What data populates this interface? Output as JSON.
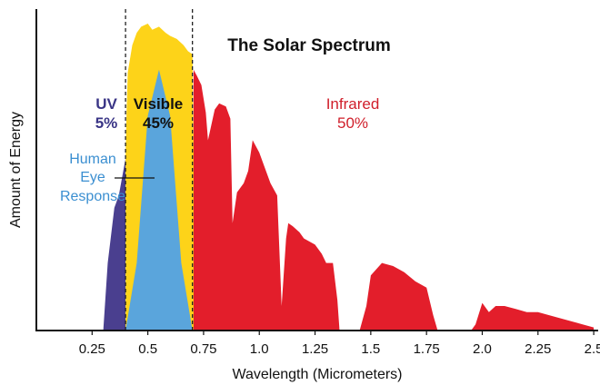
{
  "chart_data": {
    "type": "area",
    "title": "The Solar Spectrum",
    "xlabel": "Wavelength (Micrometers)",
    "ylabel": "Amount of Energy",
    "xlim": [
      0.0,
      2.52
    ],
    "ylim": [
      0,
      100
    ],
    "x_ticks": [
      "0.25",
      "0.5",
      "0.75",
      "1.0",
      "1.25",
      "1.5",
      "1.75",
      "2.0",
      "2.25",
      "2.5"
    ],
    "x_tick_values": [
      0.25,
      0.5,
      0.75,
      1.0,
      1.25,
      1.5,
      1.75,
      2.0,
      2.25,
      2.5
    ],
    "boundaries": [
      0.4,
      0.7
    ],
    "grid": false,
    "regions": [
      {
        "name": "UV",
        "percent": "5%",
        "color": "#4a3f8f",
        "range": [
          0.3,
          0.4
        ]
      },
      {
        "name": "Visible",
        "percent": "45%",
        "color": "#fdd319",
        "range": [
          0.4,
          0.72
        ]
      },
      {
        "name": "Infrared",
        "percent": "50%",
        "color": "#e31e2b",
        "range": [
          0.72,
          2.5
        ]
      }
    ],
    "annotation": {
      "lines": [
        "Human",
        "Eye",
        "Response"
      ],
      "color": "#3b8fd1"
    },
    "series": [
      {
        "region": "UV",
        "color": "#4a3f8f",
        "x": [
          0.3,
          0.32,
          0.35,
          0.37,
          0.39,
          0.4
        ],
        "y": [
          0,
          22,
          40,
          44,
          52,
          56
        ]
      },
      {
        "region": "Visible",
        "color": "#fdd319",
        "x": [
          0.4,
          0.405,
          0.41,
          0.43,
          0.45,
          0.47,
          0.5,
          0.52,
          0.55,
          0.58,
          0.6,
          0.63,
          0.66,
          0.68,
          0.7,
          0.705,
          0.71,
          0.72
        ],
        "y": [
          56,
          72,
          84,
          93,
          97,
          99,
          100,
          98,
          99,
          97,
          96,
          95,
          93,
          91,
          90,
          62,
          30,
          0
        ]
      },
      {
        "region": "Infrared",
        "color": "#e31e2b",
        "x": [
          0.705,
          0.72,
          0.74,
          0.76,
          0.77,
          0.8,
          0.82,
          0.85,
          0.87,
          0.88,
          0.9,
          0.93,
          0.95,
          0.97,
          1.0,
          1.02,
          1.05,
          1.08,
          1.1,
          1.12,
          1.13,
          1.15,
          1.18,
          1.2,
          1.25,
          1.28,
          1.3,
          1.33,
          1.35,
          1.36,
          1.4,
          1.45,
          1.48,
          1.5,
          1.55,
          1.6,
          1.65,
          1.7,
          1.75,
          1.78,
          1.8,
          1.82,
          1.9,
          1.95,
          1.97,
          2.0,
          2.03,
          2.06,
          2.1,
          2.15,
          2.2,
          2.25,
          2.3,
          2.35,
          2.4,
          2.45,
          2.5
        ],
        "y": [
          85,
          83,
          80,
          71,
          62,
          72,
          74,
          73,
          69,
          35,
          45,
          48,
          52,
          62,
          58,
          54,
          48,
          44,
          8,
          30,
          35,
          34,
          32,
          30,
          28,
          25,
          22,
          22,
          10,
          0,
          0,
          0,
          8,
          18,
          22,
          21,
          19,
          16,
          14,
          5,
          0,
          0,
          0,
          0,
          2,
          9,
          6,
          8,
          8,
          7,
          6,
          6,
          5,
          4,
          3,
          2,
          1
        ]
      },
      {
        "region": "Human Eye Response",
        "color": "#5aa5dc",
        "x": [
          0.4,
          0.45,
          0.5,
          0.55,
          0.6,
          0.65,
          0.7
        ],
        "y": [
          0,
          22,
          70,
          85,
          70,
          22,
          0
        ]
      }
    ]
  }
}
